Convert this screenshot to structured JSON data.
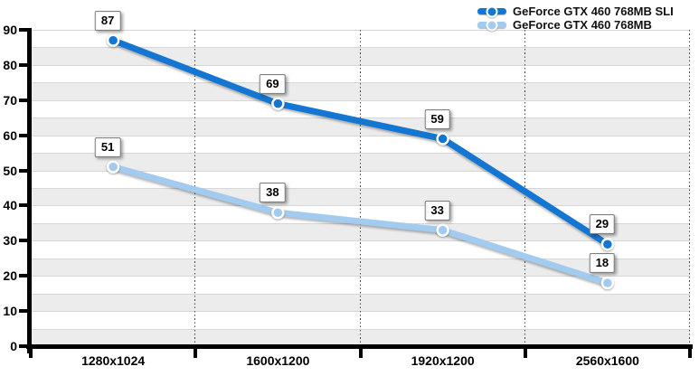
{
  "chart_data": {
    "type": "line",
    "categories": [
      "1280x1024",
      "1600x1200",
      "1920x1200",
      "2560x1600"
    ],
    "series": [
      {
        "name": "GeForce GTX 460 768MB SLI",
        "values": [
          87,
          69,
          59,
          29
        ],
        "color": "#1276d2"
      },
      {
        "name": "GeForce GTX 460 768MB",
        "values": [
          51,
          38,
          33,
          18
        ],
        "color": "#a3cbf0"
      }
    ],
    "title": "",
    "xlabel": "",
    "ylabel": "",
    "ylim": [
      0,
      90
    ],
    "y_ticks": [
      0,
      10,
      20,
      30,
      40,
      50,
      60,
      70,
      80,
      90
    ],
    "band_step": 5,
    "grid": "alternating 5-unit horizontal bands, dotted vertical category separators",
    "legend_position": "top-right",
    "value_labels": true
  },
  "style": {
    "band_gray": "#ececec",
    "band_white": "#ffffff",
    "grid_line": "#d6d6d6",
    "axis_color": "#000000",
    "dotted_line": "#4a4a4a",
    "label_text": "#000000"
  }
}
